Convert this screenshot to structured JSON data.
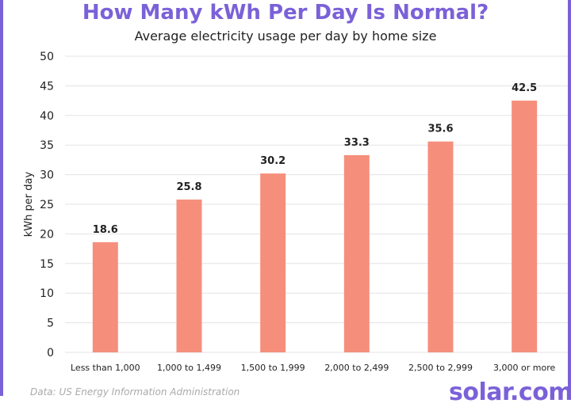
{
  "header": {
    "title": "How Many kWh Per Day Is Normal?",
    "subtitle": "Average electricity usage per day by home size"
  },
  "footer": {
    "source": "Data: US Energy Information Administration",
    "logo": "solar.com"
  },
  "colors": {
    "accent": "#7b61d8",
    "bar": "#f58f7c",
    "grid": "#e3e3e3",
    "text": "#222222"
  },
  "chart_data": {
    "type": "bar",
    "categories": [
      "Less than 1,000",
      "1,000 to 1,499",
      "1,500 to 1,999",
      "2,000 to 2,499",
      "2,500 to 2,999",
      "3,000 or more"
    ],
    "values": [
      18.6,
      25.8,
      30.2,
      33.3,
      35.6,
      42.5
    ],
    "data_labels": [
      "18.6",
      "25.8",
      "30.2",
      "33.3",
      "35.6",
      "42.5"
    ],
    "ylabel": "kWh per day",
    "xlabel": "",
    "ylim": [
      0,
      50
    ],
    "yticks": [
      0,
      5,
      10,
      15,
      20,
      25,
      30,
      35,
      40,
      45,
      50
    ],
    "grid": true,
    "legend": "none"
  }
}
